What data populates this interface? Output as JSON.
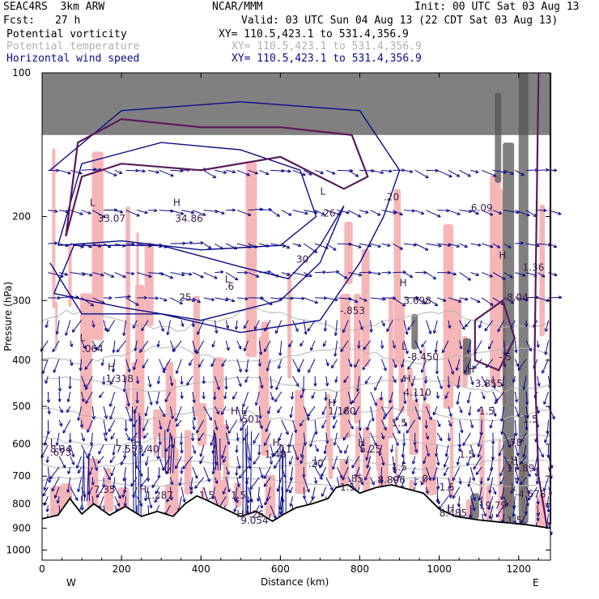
{
  "header": {
    "model": "SEAC4RS  3km ARW",
    "center": "NCAR/MMM",
    "init": "Init: 00 UTC Sat 03 Aug 13",
    "fcst_label": "Fcst:",
    "fcst_value": "27 h",
    "valid": "Valid: 03 UTC Sun 04 Aug 13 (22 CDT Sat 03 Aug 13)"
  },
  "fields": [
    {
      "name": "Potential vorticity",
      "xy": "XY= 110.5,423.1 to 531.4,356.9",
      "color": "#000000"
    },
    {
      "name": "Potential temperature",
      "xy": "XY= 110.5,423.1 to 531.4,356.9",
      "color": "#b0b0b0"
    },
    {
      "name": "Horizontal wind speed",
      "xy": "XY= 110.5,423.1 to 531.4,356.9",
      "color": "#0b0b8a"
    }
  ],
  "colors": {
    "pv_fill": "#f6b6b8",
    "pv_dark": "#5a1a5a",
    "wind": "#0b0b8a",
    "theta": "#b4b4b4",
    "terrain": "#000000"
  },
  "chart_data": {
    "type": "cross-section",
    "xlabel": "Distance (km)",
    "ylabel": "Pressure (hPa)",
    "xlim": [
      0,
      1280
    ],
    "ylim": [
      1050,
      100
    ],
    "x_ticks": [
      "0",
      "200",
      "400",
      "600",
      "800",
      "1000",
      "1200"
    ],
    "y_ticks": [
      "100",
      "200",
      "300",
      "400",
      "500",
      "600",
      "700",
      "800",
      "900",
      "1000"
    ],
    "left_end": "W",
    "right_end": "E",
    "terrain": [
      {
        "x": 0,
        "p": 860
      },
      {
        "x": 40,
        "p": 845
      },
      {
        "x": 70,
        "p": 780
      },
      {
        "x": 100,
        "p": 840
      },
      {
        "x": 130,
        "p": 800
      },
      {
        "x": 170,
        "p": 845
      },
      {
        "x": 210,
        "p": 810
      },
      {
        "x": 250,
        "p": 850
      },
      {
        "x": 290,
        "p": 830
      },
      {
        "x": 330,
        "p": 850
      },
      {
        "x": 360,
        "p": 800
      },
      {
        "x": 390,
        "p": 770
      },
      {
        "x": 420,
        "p": 790
      },
      {
        "x": 460,
        "p": 820
      },
      {
        "x": 500,
        "p": 850
      },
      {
        "x": 540,
        "p": 830
      },
      {
        "x": 580,
        "p": 870
      },
      {
        "x": 610,
        "p": 840
      },
      {
        "x": 640,
        "p": 815
      },
      {
        "x": 680,
        "p": 800
      },
      {
        "x": 720,
        "p": 780
      },
      {
        "x": 740,
        "p": 740
      },
      {
        "x": 770,
        "p": 730
      },
      {
        "x": 800,
        "p": 760
      },
      {
        "x": 840,
        "p": 740
      },
      {
        "x": 880,
        "p": 730
      },
      {
        "x": 920,
        "p": 745
      },
      {
        "x": 960,
        "p": 760
      },
      {
        "x": 1000,
        "p": 820
      },
      {
        "x": 1040,
        "p": 850
      },
      {
        "x": 1100,
        "p": 865
      },
      {
        "x": 1160,
        "p": 875
      },
      {
        "x": 1220,
        "p": 885
      },
      {
        "x": 1280,
        "p": 900
      }
    ],
    "wind_contours": [
      {
        "label": "30",
        "points": [
          [
            40,
            230
          ],
          [
            100,
            155
          ],
          [
            300,
            140
          ],
          [
            500,
            145
          ],
          [
            650,
            160
          ],
          [
            690,
            200
          ],
          [
            600,
            230
          ],
          [
            400,
            235
          ],
          [
            200,
            225
          ],
          [
            40,
            230
          ]
        ]
      },
      {
        "label": "25",
        "points": [
          [
            30,
            290
          ],
          [
            80,
            230
          ],
          [
            300,
            230
          ],
          [
            500,
            255
          ],
          [
            620,
            270
          ],
          [
            700,
            230
          ],
          [
            760,
            190
          ],
          [
            700,
            250
          ],
          [
            600,
            300
          ],
          [
            400,
            330
          ],
          [
            200,
            310
          ],
          [
            30,
            290
          ]
        ]
      },
      {
        "label": "20",
        "points": [
          [
            20,
            160
          ],
          [
            200,
            120
          ],
          [
            500,
            115
          ],
          [
            800,
            120
          ],
          [
            900,
            160
          ],
          [
            860,
            200
          ],
          [
            800,
            250
          ],
          [
            700,
            330
          ],
          [
            500,
            350
          ],
          [
            300,
            320
          ],
          [
            100,
            320
          ],
          [
            20,
            250
          ]
        ]
      }
    ],
    "pv_contours": [
      {
        "points": [
          [
            60,
            220
          ],
          [
            90,
            140
          ],
          [
            200,
            125
          ],
          [
            400,
            130
          ],
          [
            600,
            130
          ],
          [
            780,
            135
          ],
          [
            820,
            165
          ],
          [
            760,
            175
          ],
          [
            600,
            150
          ],
          [
            400,
            160
          ],
          [
            200,
            155
          ],
          [
            100,
            165
          ],
          [
            60,
            220
          ]
        ]
      },
      {
        "points": [
          [
            1090,
            330
          ],
          [
            1160,
            300
          ],
          [
            1190,
            360
          ],
          [
            1150,
            420
          ],
          [
            1090,
            400
          ],
          [
            1090,
            330
          ]
        ]
      },
      {
        "points": [
          [
            1250,
            100
          ],
          [
            1240,
            400
          ],
          [
            1250,
            700
          ],
          [
            1270,
            880
          ],
          [
            1280,
            880
          ],
          [
            1280,
            100
          ]
        ]
      }
    ],
    "annotations": [
      {
        "x": 120,
        "p": 190,
        "text": "L"
      },
      {
        "x": 140,
        "p": 205,
        "text": "33.07"
      },
      {
        "x": 330,
        "p": 190,
        "text": "H"
      },
      {
        "x": 335,
        "p": 205,
        "text": "34.86"
      },
      {
        "x": 460,
        "p": 275,
        "text": "L"
      },
      {
        "x": 460,
        "p": 285,
        "text": ".6"
      },
      {
        "x": 700,
        "p": 180,
        "text": "L"
      },
      {
        "x": 700,
        "p": 200,
        "text": ".26"
      },
      {
        "x": 750,
        "p": 320,
        "text": "-.853"
      },
      {
        "x": 900,
        "p": 280,
        "text": "H"
      },
      {
        "x": 910,
        "p": 305,
        "text": "3.698"
      },
      {
        "x": 905,
        "p": 380,
        "text": "L"
      },
      {
        "x": 920,
        "p": 400,
        "text": "-8.450"
      },
      {
        "x": 1080,
        "p": 195,
        "text": "6.09"
      },
      {
        "x": 860,
        "p": 185,
        "text": ".20"
      },
      {
        "x": 95,
        "p": 365,
        "text": "L"
      },
      {
        "x": 100,
        "p": 385,
        "text": ".064"
      },
      {
        "x": 165,
        "p": 420,
        "text": "H"
      },
      {
        "x": 160,
        "p": 445,
        "text": "1.318"
      },
      {
        "x": 345,
        "p": 300,
        "text": "25"
      },
      {
        "x": 640,
        "p": 250,
        "text": "30"
      },
      {
        "x": 1150,
        "p": 245,
        "text": "H"
      },
      {
        "x": 1210,
        "p": 260,
        "text": "1.36"
      },
      {
        "x": 1170,
        "p": 300,
        "text": "8.04"
      },
      {
        "x": 1070,
        "p": 425,
        "text": "H"
      },
      {
        "x": 1090,
        "p": 455,
        "text": "3.855"
      },
      {
        "x": 910,
        "p": 445,
        "text": "H"
      },
      {
        "x": 910,
        "p": 475,
        "text": "4.110"
      },
      {
        "x": 1150,
        "p": 400,
        "text": "-.5"
      },
      {
        "x": 1210,
        "p": 540,
        "text": "1.5"
      },
      {
        "x": 1100,
        "p": 520,
        "text": "1.5"
      },
      {
        "x": 880,
        "p": 550,
        "text": "1.5"
      },
      {
        "x": 720,
        "p": 500,
        "text": "H"
      },
      {
        "x": 720,
        "p": 520,
        "text": "1.180"
      },
      {
        "x": 475,
        "p": 520,
        "text": "H L"
      },
      {
        "x": 495,
        "p": 540,
        "text": ".501"
      },
      {
        "x": 20,
        "p": 605,
        "text": "L"
      },
      {
        "x": 20,
        "p": 625,
        "text": "8.34"
      },
      {
        "x": 20,
        "p": 635,
        "text": ".673"
      },
      {
        "x": 185,
        "p": 605,
        "text": "L"
      },
      {
        "x": 185,
        "p": 625,
        "text": "7.55"
      },
      {
        "x": 230,
        "p": 605,
        "text": "H"
      },
      {
        "x": 240,
        "p": 625,
        "text": "3.40"
      },
      {
        "x": 580,
        "p": 605,
        "text": "H"
      },
      {
        "x": 590,
        "p": 625,
        "text": ".11"
      },
      {
        "x": 560,
        "p": 640,
        "text": "1.48"
      },
      {
        "x": 795,
        "p": 605,
        "text": "H"
      },
      {
        "x": 800,
        "p": 625,
        "text": "5.25"
      },
      {
        "x": 1170,
        "p": 605,
        "text": ".78"
      },
      {
        "x": 1180,
        "p": 660,
        "text": "H"
      },
      {
        "x": 1170,
        "p": 685,
        "text": "17.89"
      },
      {
        "x": 1050,
        "p": 640,
        "text": "1.5"
      },
      {
        "x": 880,
        "p": 680,
        "text": "1.5"
      },
      {
        "x": 940,
        "p": 720,
        "text": "-.0"
      },
      {
        "x": 670,
        "p": 670,
        "text": ".20"
      },
      {
        "x": 845,
        "p": 725,
        "text": "8.896"
      },
      {
        "x": 770,
        "p": 720,
        "text": ".85"
      },
      {
        "x": 130,
        "p": 760,
        "text": "7.35"
      },
      {
        "x": 245,
        "p": 760,
        "text": "H"
      },
      {
        "x": 260,
        "p": 780,
        "text": "1.287"
      },
      {
        "x": 395,
        "p": 780,
        "text": "1.5"
      },
      {
        "x": 475,
        "p": 780,
        "text": "1.5"
      },
      {
        "x": 750,
        "p": 750,
        "text": "1.5"
      },
      {
        "x": 1000,
        "p": 750,
        "text": "1.5"
      },
      {
        "x": 1180,
        "p": 750,
        "text": "L"
      },
      {
        "x": 1190,
        "p": 775,
        "text": "-4.678"
      },
      {
        "x": 1100,
        "p": 820,
        "text": "19.79"
      },
      {
        "x": 1020,
        "p": 830,
        "text": "H"
      },
      {
        "x": 1000,
        "p": 850,
        "text": "8.485"
      },
      {
        "x": 490,
        "p": 855,
        "text": "H"
      },
      {
        "x": 520,
        "p": 855,
        "text": ".26"
      },
      {
        "x": 500,
        "p": 880,
        "text": "9.054"
      },
      {
        "x": 1170,
        "p": 880,
        "text": "1.5"
      }
    ]
  }
}
